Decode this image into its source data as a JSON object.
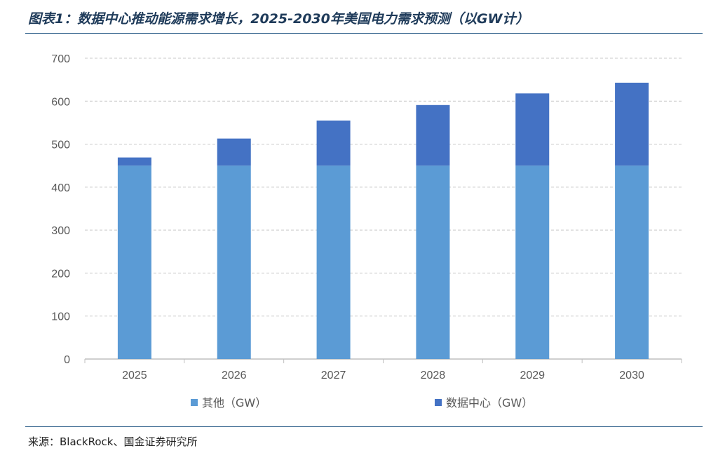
{
  "header": {
    "title": "图表1：数据中心推动能源需求增长，2025-2030年美国电力需求预测（以GW计）"
  },
  "footer": {
    "source": "来源：BlackRock、国金证券研究所"
  },
  "colors": {
    "other": "#5b9bd5",
    "datacenter": "#4472c4",
    "grid": "#c9c9c9",
    "axis": "#bfbfbf",
    "rule": "#2e5f8a"
  },
  "chart_data": {
    "type": "bar",
    "stacked": true,
    "title": "",
    "xlabel": "",
    "ylabel": "",
    "categories": [
      "2025",
      "2026",
      "2027",
      "2028",
      "2029",
      "2030"
    ],
    "ylim": [
      0,
      700
    ],
    "yticks": [
      0,
      100,
      200,
      300,
      400,
      500,
      600,
      700
    ],
    "grid": true,
    "legend_position": "bottom",
    "series": [
      {
        "name": "其他（GW）",
        "values": [
          450,
          450,
          450,
          450,
          450,
          450
        ]
      },
      {
        "name": "数据中心（GW）",
        "values": [
          19,
          63,
          105,
          141,
          168,
          193
        ]
      }
    ]
  }
}
